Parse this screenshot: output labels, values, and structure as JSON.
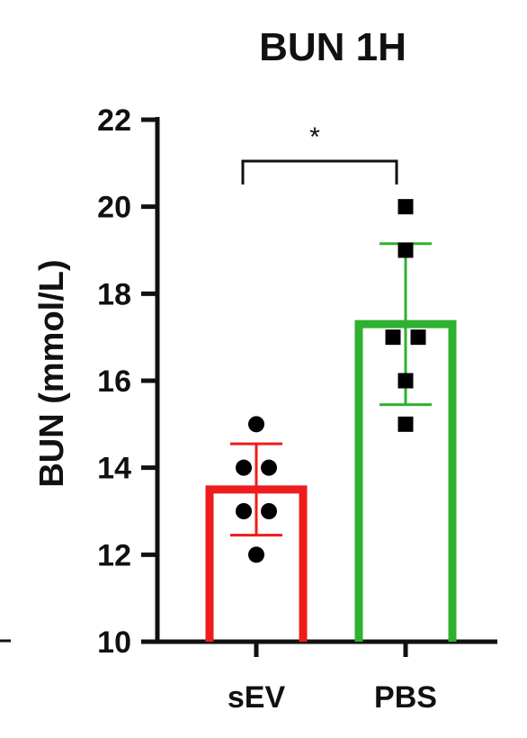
{
  "chart_data": {
    "type": "bar",
    "title": "BUN 1H",
    "ylabel": "BUN (mmol/L)",
    "xlabel": "",
    "ylim": [
      10,
      22
    ],
    "yticks": [
      10,
      12,
      14,
      16,
      18,
      20,
      22
    ],
    "categories": [
      "sEV",
      "PBS"
    ],
    "series": [
      {
        "values": [
          13.5,
          17.3
        ],
        "sd": [
          1.05,
          1.85
        ],
        "colors": [
          "#ee1c1c",
          "#2fb12f"
        ],
        "markers": [
          "circle",
          "square"
        ]
      }
    ],
    "points": [
      [
        15.0,
        14.0,
        14.0,
        13.0,
        13.0,
        12.0
      ],
      [
        20.0,
        19.0,
        17.0,
        17.0,
        16.0,
        15.0
      ]
    ],
    "annotation": {
      "text": "*",
      "between": [
        "sEV",
        "PBS"
      ]
    },
    "grid": false,
    "legend": "none"
  }
}
